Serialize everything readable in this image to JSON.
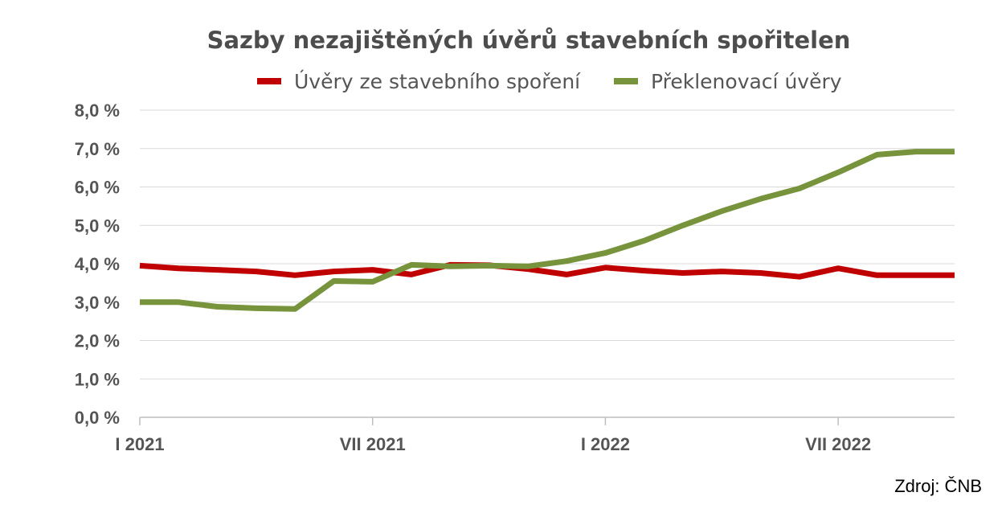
{
  "chart_data": {
    "type": "line",
    "title": "Sazby nezajištěných úvěrů stavebních spořitelen",
    "xlabel": "",
    "ylabel": "",
    "x": [
      "2021-01",
      "2021-02",
      "2021-03",
      "2021-04",
      "2021-05",
      "2021-06",
      "2021-07",
      "2021-08",
      "2021-09",
      "2021-10",
      "2021-11",
      "2021-12",
      "2022-01",
      "2022-02",
      "2022-03",
      "2022-04",
      "2022-05",
      "2022-06",
      "2022-07",
      "2022-08",
      "2022-09",
      "2022-10"
    ],
    "x_tick_labels": [
      {
        "x": "2021-01",
        "label": "I 2021"
      },
      {
        "x": "2021-07",
        "label": "VII 2021"
      },
      {
        "x": "2022-01",
        "label": "I 2022"
      },
      {
        "x": "2022-07",
        "label": "VII 2022"
      }
    ],
    "y_ticks": [
      0,
      1,
      2,
      3,
      4,
      5,
      6,
      7,
      8
    ],
    "y_tick_labels": [
      "0,0 %",
      "1,0 %",
      "2,0 %",
      "3,0 %",
      "4,0 %",
      "5,0 %",
      "6,0 %",
      "7,0 %",
      "8,0 %"
    ],
    "ylim": [
      0,
      8
    ],
    "grid": true,
    "legend_position": "top",
    "series": [
      {
        "name": "Úvěry ze stavebního spoření",
        "color": "#c00000",
        "values": [
          3.95,
          3.88,
          3.84,
          3.8,
          3.7,
          3.8,
          3.84,
          3.72,
          3.97,
          3.96,
          3.86,
          3.72,
          3.9,
          3.82,
          3.76,
          3.8,
          3.76,
          3.66,
          3.88,
          3.7,
          3.7,
          3.7
        ]
      },
      {
        "name": "Překlenovací úvěry",
        "color": "#77933c",
        "values": [
          3.0,
          3.0,
          2.88,
          2.84,
          2.82,
          3.55,
          3.53,
          3.97,
          3.93,
          3.95,
          3.93,
          4.07,
          4.28,
          4.6,
          5.0,
          5.37,
          5.69,
          5.96,
          6.38,
          6.84,
          6.92,
          6.92
        ]
      }
    ],
    "source": "Zdroj: ČNB"
  }
}
